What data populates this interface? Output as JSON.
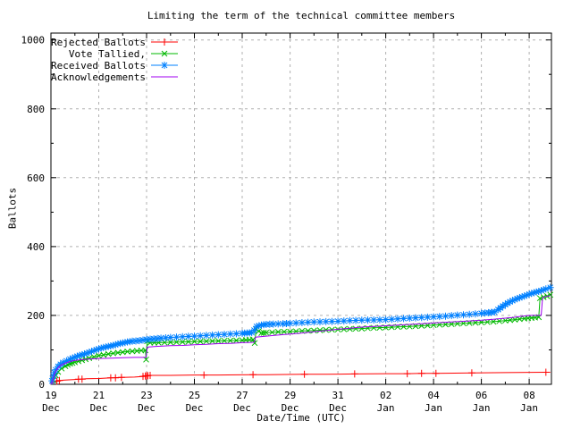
{
  "title": "Limiting the term of the technical committee members",
  "colors": {
    "background": "#ffffff",
    "border": "#000000",
    "grid": "#b0b0b0",
    "text": "#000000",
    "rejected": "#ff0000",
    "tallied": "#00b800",
    "received": "#0080ff",
    "acknowledgements": "#a000f0"
  },
  "chart_data": {
    "type": "line",
    "title": "Limiting the term of the technical committee members",
    "xlabel": "Date/Time (UTC)",
    "ylabel": "Ballots",
    "x_unit": "days since 19 Dec 00:00 UTC",
    "xlim": [
      0,
      20.93
    ],
    "ylim": [
      0,
      1020
    ],
    "grid": true,
    "legend_position": "top-left",
    "y_ticks": {
      "major": [
        0,
        200,
        400,
        600,
        800,
        1000
      ],
      "minor": [
        100,
        300,
        500,
        700,
        900
      ]
    },
    "x_ticks": {
      "major": [
        {
          "day": 0,
          "line1": "19",
          "line2": "Dec"
        },
        {
          "day": 2,
          "line1": "21",
          "line2": "Dec"
        },
        {
          "day": 4,
          "line1": "23",
          "line2": "Dec"
        },
        {
          "day": 6,
          "line1": "25",
          "line2": "Dec"
        },
        {
          "day": 8,
          "line1": "27",
          "line2": "Dec"
        },
        {
          "day": 10,
          "line1": "29",
          "line2": "Dec"
        },
        {
          "day": 12,
          "line1": "31",
          "line2": "Dec"
        },
        {
          "day": 14,
          "line1": "02",
          "line2": "Jan"
        },
        {
          "day": 16,
          "line1": "04",
          "line2": "Jan"
        },
        {
          "day": 18,
          "line1": "06",
          "line2": "Jan"
        },
        {
          "day": 20,
          "line1": "08",
          "line2": "Jan"
        }
      ],
      "minor_days": [
        1,
        3,
        5,
        7,
        9,
        11,
        13,
        15,
        17,
        19
      ]
    },
    "series": [
      {
        "name": "Rejected Ballots",
        "color": "#ff0000",
        "marker": "plus",
        "points": [
          [
            0,
            0
          ],
          [
            0.1,
            5
          ],
          [
            0.2,
            8
          ],
          [
            0.3,
            10
          ],
          [
            0.5,
            12
          ],
          [
            1,
            14
          ],
          [
            1.5,
            16
          ],
          [
            2,
            17
          ],
          [
            2.5,
            19
          ],
          [
            3,
            20
          ],
          [
            3.5,
            21
          ],
          [
            3.9,
            23
          ],
          [
            4,
            25
          ],
          [
            4.1,
            26
          ],
          [
            5,
            26
          ],
          [
            6,
            27
          ],
          [
            7,
            27
          ],
          [
            8.4,
            28
          ],
          [
            9,
            28
          ],
          [
            10.6,
            29
          ],
          [
            11.5,
            29
          ],
          [
            12.7,
            30
          ],
          [
            14,
            31
          ],
          [
            14.9,
            31
          ],
          [
            15.5,
            32
          ],
          [
            16.1,
            32
          ],
          [
            17.6,
            33
          ],
          [
            19,
            34
          ],
          [
            20.7,
            35
          ],
          [
            20.88,
            35
          ]
        ],
        "marker_points": [
          [
            0.25,
            9
          ],
          [
            0.35,
            11
          ],
          [
            1.15,
            15
          ],
          [
            1.3,
            15
          ],
          [
            2.5,
            19
          ],
          [
            2.7,
            19
          ],
          [
            2.95,
            20
          ],
          [
            3.85,
            23
          ],
          [
            3.95,
            24
          ],
          [
            4.0,
            25
          ],
          [
            4.05,
            25
          ],
          [
            4.15,
            26
          ],
          [
            6.4,
            27
          ],
          [
            8.45,
            28
          ],
          [
            10.6,
            29
          ],
          [
            12.7,
            30
          ],
          [
            14.9,
            31
          ],
          [
            15.5,
            32
          ],
          [
            16.1,
            32
          ],
          [
            17.6,
            33
          ],
          [
            20.7,
            35
          ]
        ]
      },
      {
        "name": "Vote Tallied,",
        "color": "#00b800",
        "marker": "cross",
        "points": [
          [
            0,
            0
          ],
          [
            0.1,
            12
          ],
          [
            0.2,
            26
          ],
          [
            0.3,
            36
          ],
          [
            0.45,
            46
          ],
          [
            0.6,
            53
          ],
          [
            0.8,
            60
          ],
          [
            1,
            64
          ],
          [
            1.3,
            70
          ],
          [
            1.6,
            76
          ],
          [
            2,
            83
          ],
          [
            2.4,
            88
          ],
          [
            2.8,
            92
          ],
          [
            3.2,
            95
          ],
          [
            3.6,
            97
          ],
          [
            3.95,
            99
          ],
          [
            3.98,
            72
          ],
          [
            4.02,
            125
          ],
          [
            4.15,
            121
          ],
          [
            4.5,
            121
          ],
          [
            5,
            122
          ],
          [
            5.5,
            123
          ],
          [
            6,
            124
          ],
          [
            6.5,
            125
          ],
          [
            7,
            126
          ],
          [
            7.5,
            127
          ],
          [
            8,
            128
          ],
          [
            8.3,
            129
          ],
          [
            8.45,
            130
          ],
          [
            8.52,
            120
          ],
          [
            8.58,
            160
          ],
          [
            8.8,
            149
          ],
          [
            9,
            150
          ],
          [
            9.5,
            152
          ],
          [
            10,
            153
          ],
          [
            10.5,
            155
          ],
          [
            11,
            156
          ],
          [
            11.5,
            158
          ],
          [
            12,
            159
          ],
          [
            12.5,
            161
          ],
          [
            13,
            162
          ],
          [
            13.5,
            164
          ],
          [
            14,
            165
          ],
          [
            14.5,
            167
          ],
          [
            15,
            168
          ],
          [
            15.5,
            170
          ],
          [
            16,
            172
          ],
          [
            16.5,
            174
          ],
          [
            17,
            176
          ],
          [
            17.5,
            178
          ],
          [
            18,
            180
          ],
          [
            18.5,
            182
          ],
          [
            19,
            185
          ],
          [
            19.4,
            188
          ],
          [
            19.8,
            191
          ],
          [
            20.1,
            193
          ],
          [
            20.4,
            195
          ],
          [
            20.45,
            250
          ],
          [
            20.6,
            253
          ],
          [
            20.75,
            256
          ],
          [
            20.88,
            260
          ]
        ]
      },
      {
        "name": "Received Ballots",
        "color": "#0080ff",
        "marker": "star",
        "points": [
          [
            0,
            0
          ],
          [
            0.05,
            10
          ],
          [
            0.1,
            24
          ],
          [
            0.15,
            34
          ],
          [
            0.2,
            42
          ],
          [
            0.3,
            52
          ],
          [
            0.4,
            58
          ],
          [
            0.5,
            63
          ],
          [
            0.65,
            68
          ],
          [
            0.8,
            73
          ],
          [
            1,
            79
          ],
          [
            1.2,
            84
          ],
          [
            1.4,
            88
          ],
          [
            1.6,
            93
          ],
          [
            1.8,
            98
          ],
          [
            2,
            103
          ],
          [
            2.2,
            107
          ],
          [
            2.4,
            110
          ],
          [
            2.6,
            113
          ],
          [
            2.8,
            117
          ],
          [
            3,
            120
          ],
          [
            3.2,
            123
          ],
          [
            3.4,
            125
          ],
          [
            3.7,
            127
          ],
          [
            4,
            130
          ],
          [
            4.3,
            132
          ],
          [
            4.6,
            134
          ],
          [
            5,
            136
          ],
          [
            5.5,
            138
          ],
          [
            6,
            140
          ],
          [
            6.5,
            142
          ],
          [
            7,
            144
          ],
          [
            7.5,
            146
          ],
          [
            8,
            148
          ],
          [
            8.2,
            149
          ],
          [
            8.4,
            150
          ],
          [
            8.5,
            157
          ],
          [
            8.6,
            168
          ],
          [
            8.8,
            172
          ],
          [
            9,
            174
          ],
          [
            9.3,
            175
          ],
          [
            9.7,
            176
          ],
          [
            10,
            177
          ],
          [
            10.5,
            179
          ],
          [
            11,
            181
          ],
          [
            11.5,
            182
          ],
          [
            12,
            183
          ],
          [
            12.5,
            185
          ],
          [
            13,
            186
          ],
          [
            13.5,
            187
          ],
          [
            14,
            188
          ],
          [
            14.5,
            190
          ],
          [
            15,
            192
          ],
          [
            15.5,
            194
          ],
          [
            16,
            196
          ],
          [
            16.5,
            198
          ],
          [
            17,
            201
          ],
          [
            17.5,
            203
          ],
          [
            18,
            206
          ],
          [
            18.3,
            208
          ],
          [
            18.55,
            210
          ],
          [
            18.7,
            217
          ],
          [
            18.9,
            227
          ],
          [
            19.1,
            236
          ],
          [
            19.3,
            243
          ],
          [
            19.5,
            249
          ],
          [
            19.7,
            254
          ],
          [
            19.9,
            259
          ],
          [
            20.1,
            264
          ],
          [
            20.3,
            268
          ],
          [
            20.5,
            272
          ],
          [
            20.7,
            277
          ],
          [
            20.88,
            281
          ]
        ]
      },
      {
        "name": "Acknowledgements",
        "color": "#a000f0",
        "marker": "none",
        "points": [
          [
            0,
            0
          ],
          [
            0.05,
            8
          ],
          [
            0.1,
            18
          ],
          [
            0.15,
            30
          ],
          [
            0.2,
            38
          ],
          [
            0.3,
            48
          ],
          [
            0.4,
            55
          ],
          [
            0.55,
            60
          ],
          [
            0.7,
            64
          ],
          [
            0.9,
            68
          ],
          [
            1.1,
            70
          ],
          [
            1.5,
            73
          ],
          [
            2,
            75
          ],
          [
            2.5,
            76
          ],
          [
            3,
            77
          ],
          [
            3.5,
            78
          ],
          [
            3.98,
            78
          ],
          [
            4.03,
            108
          ],
          [
            4.4,
            110
          ],
          [
            5,
            112
          ],
          [
            5.5,
            113
          ],
          [
            6,
            115
          ],
          [
            6.5,
            116
          ],
          [
            7,
            118
          ],
          [
            7.5,
            119
          ],
          [
            8,
            121
          ],
          [
            8.5,
            122
          ],
          [
            8.56,
            137
          ],
          [
            9,
            140
          ],
          [
            9.5,
            143
          ],
          [
            10,
            146
          ],
          [
            10.5,
            149
          ],
          [
            11,
            153
          ],
          [
            11.5,
            156
          ],
          [
            12,
            160
          ],
          [
            12.5,
            163
          ],
          [
            13,
            166
          ],
          [
            13.5,
            168
          ],
          [
            14,
            170
          ],
          [
            14.5,
            172
          ],
          [
            15,
            174
          ],
          [
            15.5,
            176
          ],
          [
            16,
            178
          ],
          [
            16.5,
            180
          ],
          [
            17,
            182
          ],
          [
            17.5,
            184
          ],
          [
            18,
            186
          ],
          [
            18.5,
            189
          ],
          [
            19,
            192
          ],
          [
            19.3,
            194
          ],
          [
            19.6,
            197
          ],
          [
            19.9,
            199
          ],
          [
            20.1,
            200
          ],
          [
            20.5,
            200
          ],
          [
            20.56,
            252
          ],
          [
            20.7,
            255
          ],
          [
            20.88,
            258
          ]
        ]
      }
    ]
  }
}
